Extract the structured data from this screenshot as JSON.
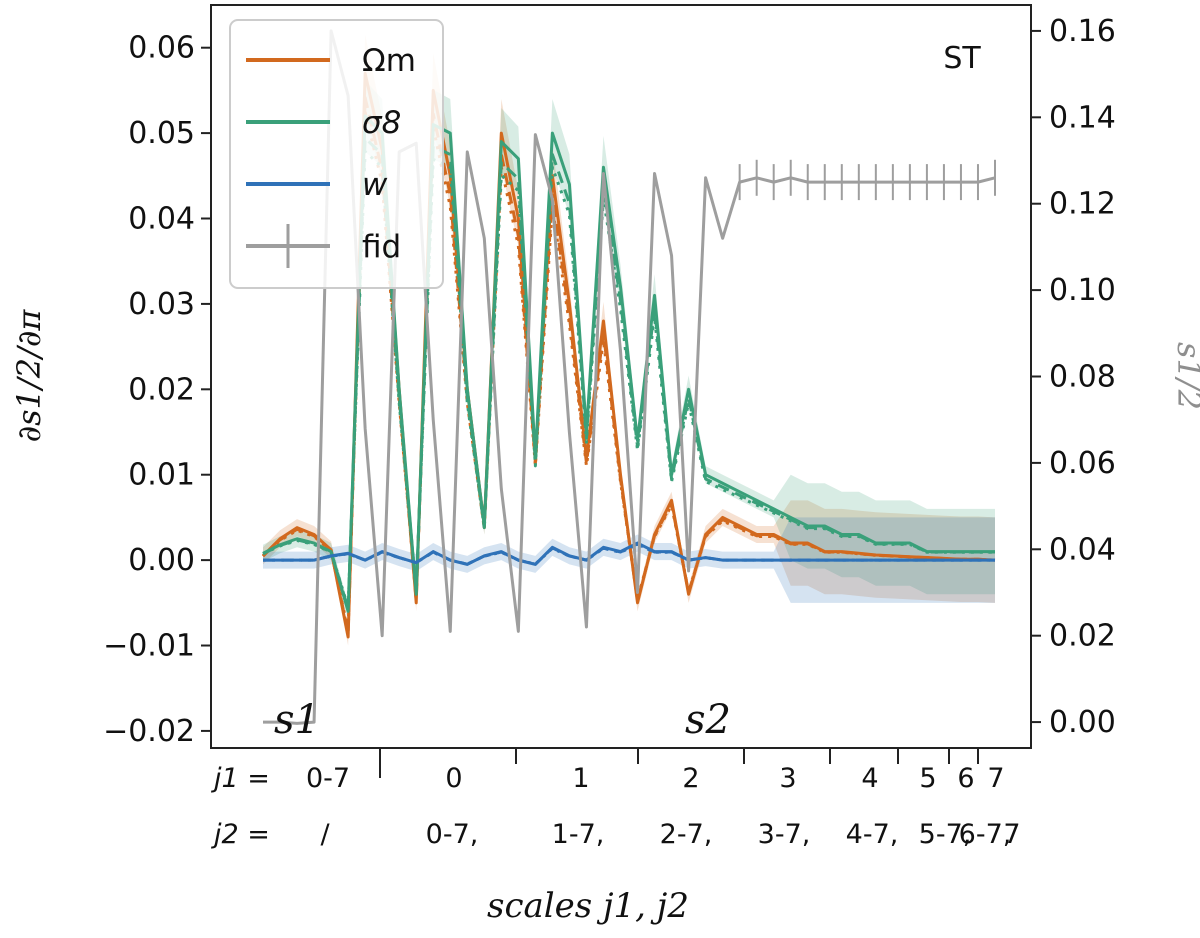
{
  "chart_data": {
    "type": "line",
    "corner_label": "ST",
    "ylabel_left": "∂s1/2/∂π",
    "ylabel_right": "s1/2",
    "xlabel": "scales j1, j2",
    "ylim_left": [
      -0.022,
      0.065
    ],
    "ylim_right": [
      -0.006,
      0.166
    ],
    "yticks_left": [
      "0.06",
      "0.05",
      "0.04",
      "0.03",
      "0.02",
      "0.01",
      "0.00",
      "−0.01",
      "−0.02"
    ],
    "yticks_right": [
      "0.16",
      "0.14",
      "0.12",
      "0.10",
      "0.08",
      "0.06",
      "0.04",
      "0.02",
      "0.00"
    ],
    "region_labels": {
      "s1": "s1",
      "s2": "s2"
    },
    "legend": [
      {
        "key": "om",
        "label": "Ωm",
        "color": "#d2691e"
      },
      {
        "key": "s8",
        "label": "σ8",
        "color": "#3aa07a"
      },
      {
        "key": "w",
        "label": "w",
        "color": "#2f72b8"
      },
      {
        "key": "fid",
        "label": "fid",
        "color": "#9e9e9e"
      }
    ],
    "x_axis_rows": {
      "j1_prefix": "j1 =",
      "j2_prefix": "j2 =",
      "j1_labels": [
        "0-7",
        "0",
        "1",
        "2",
        "3",
        "4",
        "5",
        "6",
        "7"
      ],
      "j2_labels": [
        "/",
        "0-7,",
        "1-7,",
        "2-7,",
        "3-7,",
        "4-7,",
        "5-7,",
        "6-7,",
        "7"
      ]
    },
    "x_index_range": [
      0,
      43
    ],
    "series": [
      {
        "name": "Ωm",
        "axis": "left",
        "color": "#d2691e",
        "values": [
          0.0005,
          0.0025,
          0.0038,
          0.003,
          0.0012,
          -0.009,
          0.057,
          0.048,
          0.02,
          -0.005,
          0.055,
          0.045,
          0.02,
          0.004,
          0.05,
          0.04,
          0.012,
          0.045,
          0.03,
          0.012,
          0.028,
          0.01,
          -0.005,
          0.003,
          0.007,
          -0.004,
          0.003,
          0.005,
          0.004,
          0.003,
          0.003,
          0.002,
          0.002,
          0.001,
          0.001,
          0.0008,
          0.0006,
          0.0005,
          0.0004,
          0.0003,
          0.0002,
          0.0001,
          0.0001,
          0.0
        ]
      },
      {
        "name": "σ8",
        "axis": "left",
        "color": "#3aa07a",
        "values": [
          0.0008,
          0.0018,
          0.0025,
          0.002,
          0.001,
          -0.006,
          0.052,
          0.05,
          0.02,
          -0.004,
          0.051,
          0.05,
          0.02,
          0.004,
          0.049,
          0.047,
          0.012,
          0.05,
          0.044,
          0.015,
          0.046,
          0.032,
          0.014,
          0.031,
          0.01,
          0.02,
          0.01,
          0.009,
          0.008,
          0.007,
          0.006,
          0.005,
          0.004,
          0.004,
          0.003,
          0.003,
          0.002,
          0.002,
          0.002,
          0.001,
          0.001,
          0.001,
          0.001,
          0.001
        ]
      },
      {
        "name": "w",
        "axis": "left",
        "color": "#2f72b8",
        "values": [
          0.0,
          0.0,
          0.0,
          0.0,
          0.0005,
          0.0008,
          0.0,
          0.001,
          0.0003,
          -0.0003,
          0.001,
          0.0,
          -0.0005,
          0.0005,
          0.001,
          0.0,
          -0.0005,
          0.0015,
          0.0005,
          0.0,
          0.0015,
          0.001,
          0.002,
          0.001,
          0.001,
          0.0,
          0.0003,
          0.0,
          0.0,
          0.0,
          0.0,
          0.0,
          0.0,
          0.0,
          0.0,
          0.0,
          0.0,
          0.0,
          0.0,
          0.0,
          0.0,
          0.0,
          0.0,
          0.0
        ]
      },
      {
        "name": "fid",
        "axis": "right",
        "color": "#9e9e9e",
        "values": [
          0.0,
          0.0,
          -0.0003,
          0.0,
          0.16,
          0.145,
          0.068,
          0.02,
          0.132,
          0.134,
          0.07,
          0.021,
          0.132,
          0.112,
          0.054,
          0.021,
          0.136,
          0.121,
          0.067,
          0.022,
          0.127,
          0.086,
          0.03,
          0.127,
          0.108,
          0.035,
          0.126,
          0.112,
          0.125,
          0.126,
          0.125,
          0.126,
          0.125,
          0.125,
          0.125,
          0.125,
          0.125,
          0.125,
          0.125,
          0.125,
          0.125,
          0.125,
          0.125,
          0.126
        ]
      }
    ]
  }
}
